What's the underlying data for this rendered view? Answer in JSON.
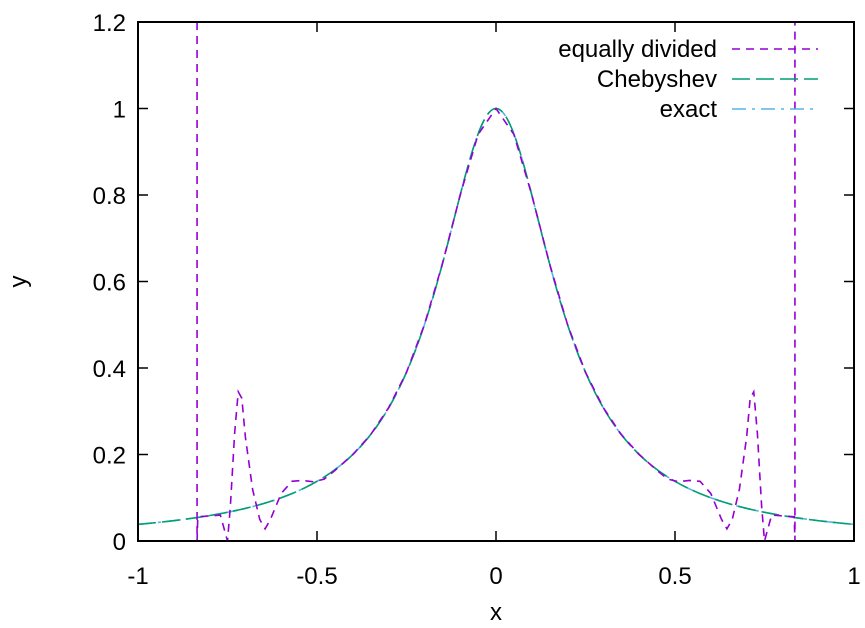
{
  "chart_data": {
    "type": "line",
    "title": "",
    "xlabel": "x",
    "ylabel": "y",
    "xlim": [
      -1,
      1
    ],
    "ylim": [
      0,
      1.2
    ],
    "xticks": [
      -1,
      -0.5,
      0,
      0.5,
      1
    ],
    "xtick_labels": [
      "-1",
      "-0.5",
      "0",
      "0.5",
      "1"
    ],
    "yticks": [
      0,
      0.2,
      0.4,
      0.6,
      0.8,
      1,
      1.2
    ],
    "ytick_labels": [
      "0",
      "0.2",
      "0.4",
      "0.6",
      "0.8",
      "1",
      "1.2"
    ],
    "grid": false,
    "legend_position": "top-right",
    "series": [
      {
        "name": "equally divided",
        "color": "#9400d3",
        "dash": "short-dash",
        "points": [
          [
            -0.835,
            1.2
          ],
          [
            -0.835,
            0.0
          ],
          [
            -0.833,
            0.056
          ],
          [
            -0.8,
            0.058
          ],
          [
            -0.77,
            0.06
          ],
          [
            -0.75,
            0.0
          ],
          [
            -0.742,
            0.08
          ],
          [
            -0.73,
            0.25
          ],
          [
            -0.72,
            0.345
          ],
          [
            -0.71,
            0.33
          ],
          [
            -0.7,
            0.24
          ],
          [
            -0.68,
            0.12
          ],
          [
            -0.66,
            0.05
          ],
          [
            -0.645,
            0.028
          ],
          [
            -0.63,
            0.05
          ],
          [
            -0.6,
            0.11
          ],
          [
            -0.57,
            0.138
          ],
          [
            -0.54,
            0.14
          ],
          [
            -0.51,
            0.137
          ],
          [
            -0.48,
            0.143
          ],
          [
            -0.45,
            0.163
          ],
          [
            -0.4,
            0.2
          ],
          [
            -0.35,
            0.246
          ],
          [
            -0.3,
            0.308
          ],
          [
            -0.25,
            0.39
          ],
          [
            -0.2,
            0.5
          ],
          [
            -0.15,
            0.64
          ],
          [
            -0.1,
            0.8
          ],
          [
            -0.05,
            0.94
          ],
          [
            0.0,
            1.0
          ],
          [
            0.05,
            0.94
          ],
          [
            0.1,
            0.8
          ],
          [
            0.15,
            0.64
          ],
          [
            0.2,
            0.5
          ],
          [
            0.25,
            0.39
          ],
          [
            0.3,
            0.308
          ],
          [
            0.35,
            0.246
          ],
          [
            0.4,
            0.2
          ],
          [
            0.45,
            0.163
          ],
          [
            0.48,
            0.143
          ],
          [
            0.51,
            0.137
          ],
          [
            0.54,
            0.14
          ],
          [
            0.57,
            0.138
          ],
          [
            0.6,
            0.11
          ],
          [
            0.63,
            0.05
          ],
          [
            0.645,
            0.028
          ],
          [
            0.66,
            0.05
          ],
          [
            0.68,
            0.12
          ],
          [
            0.7,
            0.24
          ],
          [
            0.71,
            0.33
          ],
          [
            0.72,
            0.345
          ],
          [
            0.73,
            0.25
          ],
          [
            0.742,
            0.08
          ],
          [
            0.75,
            0.0
          ],
          [
            0.77,
            0.06
          ],
          [
            0.8,
            0.058
          ],
          [
            0.833,
            0.056
          ],
          [
            0.835,
            0.0
          ],
          [
            0.835,
            1.2
          ]
        ]
      },
      {
        "name": "Chebyshev",
        "color": "#009e73",
        "dash": "long-dash",
        "function": "runge"
      },
      {
        "name": "exact",
        "color": "#56b4e9",
        "dash": "dash-dot",
        "function": "runge"
      }
    ]
  }
}
